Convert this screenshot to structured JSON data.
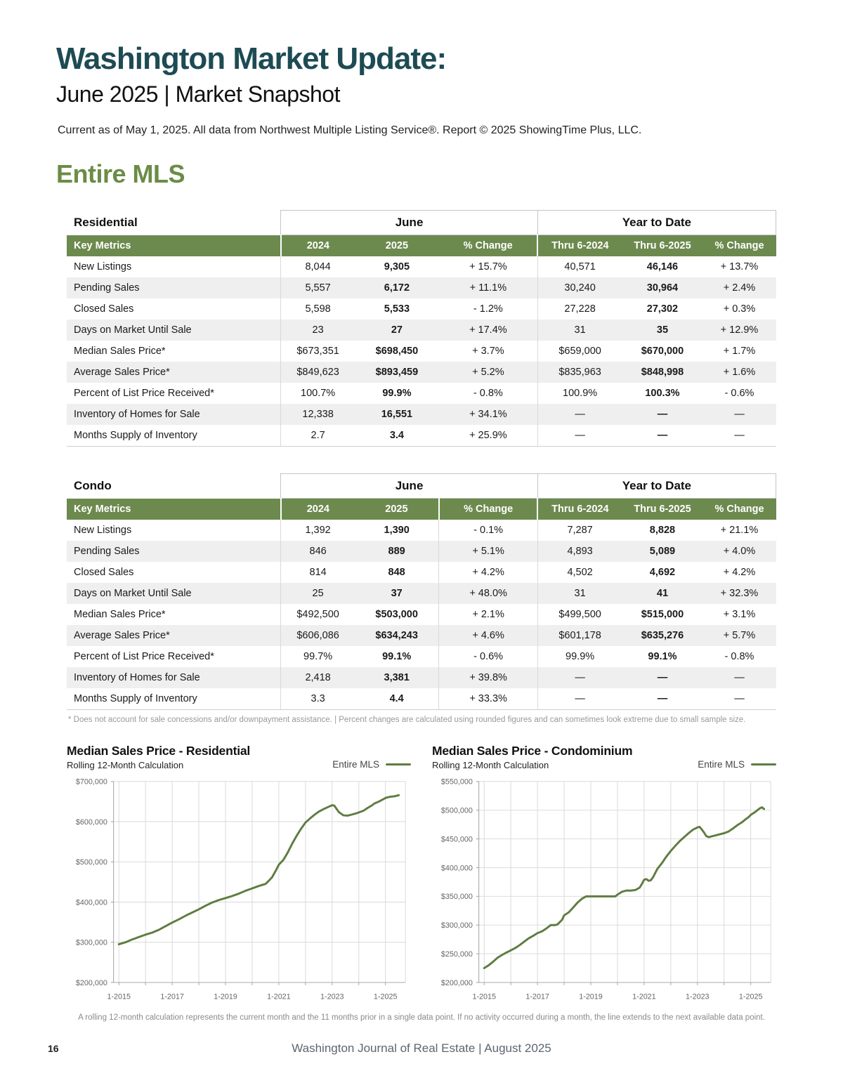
{
  "page": {
    "title": "Washington Market Update:",
    "subtitle": "June 2025 | Market Snapshot",
    "note": "Current as of May 1, 2025. All data from Northwest Multiple Listing Service®. Report © 2025 ShowingTime Plus, LLC.",
    "section_title": "Entire MLS",
    "footnote": "* Does not account for sale concessions and/or downpayment assistance. | Percent changes are calculated using rounded figures and can sometimes look extreme due to small sample size.",
    "chart_note": "A rolling 12-month calculation represents the current month and the 11 months prior in a single data point. If no activity occurred during a month, the line extends to the next available data point.",
    "page_number": "16",
    "footer": "Washington Journal of Real Estate | August 2025"
  },
  "colors": {
    "accent_teal": "#1d4b54",
    "accent_green": "#6b8c45",
    "table_header_green": "#6d8a4e",
    "chart_line": "#5f7c41",
    "row_alt": "#efefef"
  },
  "tables": [
    {
      "name": "Residential",
      "group_headers": [
        "June",
        "Year to Date"
      ],
      "columns": [
        "Key Metrics",
        "2024",
        "2025",
        "% Change",
        "Thru 6-2024",
        "Thru 6-2025",
        "% Change"
      ],
      "rows": [
        [
          "New Listings",
          "8,044",
          "9,305",
          "+ 15.7%",
          "40,571",
          "46,146",
          "+ 13.7%"
        ],
        [
          "Pending Sales",
          "5,557",
          "6,172",
          "+ 11.1%",
          "30,240",
          "30,964",
          "+ 2.4%"
        ],
        [
          "Closed Sales",
          "5,598",
          "5,533",
          "- 1.2%",
          "27,228",
          "27,302",
          "+ 0.3%"
        ],
        [
          "Days on Market Until Sale",
          "23",
          "27",
          "+ 17.4%",
          "31",
          "35",
          "+ 12.9%"
        ],
        [
          "Median Sales Price*",
          "$673,351",
          "$698,450",
          "+ 3.7%",
          "$659,000",
          "$670,000",
          "+ 1.7%"
        ],
        [
          "Average Sales Price*",
          "$849,623",
          "$893,459",
          "+ 5.2%",
          "$835,963",
          "$848,998",
          "+ 1.6%"
        ],
        [
          "Percent of List Price Received*",
          "100.7%",
          "99.9%",
          "- 0.8%",
          "100.9%",
          "100.3%",
          "- 0.6%"
        ],
        [
          "Inventory of Homes for Sale",
          "12,338",
          "16,551",
          "+ 34.1%",
          "—",
          "—",
          "—"
        ],
        [
          "Months Supply of Inventory",
          "2.7",
          "3.4",
          "+ 25.9%",
          "—",
          "—",
          "—"
        ]
      ]
    },
    {
      "name": "Condo",
      "group_headers": [
        "June",
        "Year to Date"
      ],
      "columns": [
        "Key Metrics",
        "2024",
        "2025",
        "% Change",
        "Thru 6-2024",
        "Thru 6-2025",
        "% Change"
      ],
      "rows": [
        [
          "New Listings",
          "1,392",
          "1,390",
          "- 0.1%",
          "7,287",
          "8,828",
          "+ 21.1%"
        ],
        [
          "Pending Sales",
          "846",
          "889",
          "+ 5.1%",
          "4,893",
          "5,089",
          "+ 4.0%"
        ],
        [
          "Closed Sales",
          "814",
          "848",
          "+ 4.2%",
          "4,502",
          "4,692",
          "+ 4.2%"
        ],
        [
          "Days on Market Until Sale",
          "25",
          "37",
          "+ 48.0%",
          "31",
          "41",
          "+ 32.3%"
        ],
        [
          "Median Sales Price*",
          "$492,500",
          "$503,000",
          "+ 2.1%",
          "$499,500",
          "$515,000",
          "+ 3.1%"
        ],
        [
          "Average Sales Price*",
          "$606,086",
          "$634,243",
          "+ 4.6%",
          "$601,178",
          "$635,276",
          "+ 5.7%"
        ],
        [
          "Percent of List Price Received*",
          "99.7%",
          "99.1%",
          "- 0.6%",
          "99.9%",
          "99.1%",
          "- 0.8%"
        ],
        [
          "Inventory of Homes for Sale",
          "2,418",
          "3,381",
          "+ 39.8%",
          "—",
          "—",
          "—"
        ],
        [
          "Months Supply of Inventory",
          "3.3",
          "4.4",
          "+ 33.3%",
          "—",
          "—",
          "—"
        ]
      ]
    }
  ],
  "chart_data": [
    {
      "type": "line",
      "title": "Median Sales Price - Residential",
      "subtitle": "Rolling 12-Month Calculation",
      "legend": [
        "Entire MLS"
      ],
      "legend_position": "top-right",
      "grid": true,
      "xlabel": "",
      "ylabel": "",
      "xlim": [
        2014.8,
        2025.75
      ],
      "ylim": [
        200000,
        700000
      ],
      "y_tick_step": 100000,
      "y_ticks": [
        "$700,000",
        "$600,000",
        "$500,000",
        "$400,000",
        "$300,000",
        "$200,000"
      ],
      "x_ticks": [
        "1-2015",
        "1-2017",
        "1-2019",
        "1-2021",
        "1-2023",
        "1-2025"
      ],
      "x_tick_years": [
        2015,
        2017,
        2019,
        2021,
        2023,
        2025
      ],
      "series": [
        {
          "name": "Entire MLS",
          "x": [
            2015.0,
            2015.25,
            2015.5,
            2015.75,
            2016.0,
            2016.25,
            2016.5,
            2016.75,
            2017.0,
            2017.25,
            2017.5,
            2017.75,
            2018.0,
            2018.25,
            2018.5,
            2018.75,
            2019.0,
            2019.25,
            2019.5,
            2019.75,
            2020.0,
            2020.25,
            2020.5,
            2020.58,
            2020.75,
            2020.9,
            2021.0,
            2021.17,
            2021.33,
            2021.5,
            2021.67,
            2021.83,
            2022.0,
            2022.17,
            2022.33,
            2022.5,
            2022.67,
            2022.83,
            2023.0,
            2023.08,
            2023.25,
            2023.42,
            2023.58,
            2023.75,
            2023.92,
            2024.0,
            2024.17,
            2024.33,
            2024.5,
            2024.58,
            2024.75,
            2024.92,
            2025.0,
            2025.17,
            2025.33,
            2025.5
          ],
          "y": [
            295000,
            300000,
            307000,
            313000,
            319000,
            324000,
            331000,
            340000,
            349000,
            357000,
            366000,
            374000,
            382000,
            391000,
            399000,
            405000,
            410000,
            415000,
            421000,
            428000,
            434000,
            440000,
            445000,
            450000,
            462000,
            480000,
            493000,
            505000,
            523000,
            545000,
            565000,
            582000,
            598000,
            608000,
            617000,
            625000,
            631000,
            636000,
            641000,
            640000,
            624000,
            616000,
            615000,
            618000,
            621000,
            623000,
            627000,
            634000,
            641000,
            645000,
            650000,
            656000,
            659000,
            662000,
            663000,
            666000
          ]
        }
      ]
    },
    {
      "type": "line",
      "title": "Median Sales Price - Condominium",
      "subtitle": "Rolling 12-Month Calculation",
      "legend": [
        "Entire MLS"
      ],
      "legend_position": "top-right",
      "grid": true,
      "xlabel": "",
      "ylabel": "",
      "xlim": [
        2014.8,
        2025.75
      ],
      "ylim": [
        200000,
        550000
      ],
      "y_tick_step": 50000,
      "y_ticks": [
        "$550,000",
        "$500,000",
        "$450,000",
        "$400,000",
        "$350,000",
        "$300,000",
        "$250,000",
        "$200,000"
      ],
      "x_ticks": [
        "1-2015",
        "1-2017",
        "1-2019",
        "1-2021",
        "1-2023",
        "1-2025"
      ],
      "x_tick_years": [
        2015,
        2017,
        2019,
        2021,
        2023,
        2025
      ],
      "series": [
        {
          "name": "Entire MLS",
          "x": [
            2015.0,
            2015.17,
            2015.33,
            2015.5,
            2015.67,
            2015.83,
            2016.0,
            2016.17,
            2016.33,
            2016.5,
            2016.67,
            2016.83,
            2017.0,
            2017.17,
            2017.33,
            2017.5,
            2017.67,
            2017.75,
            2017.92,
            2018.0,
            2018.17,
            2018.33,
            2018.5,
            2018.67,
            2018.83,
            2019.0,
            2019.25,
            2019.5,
            2019.75,
            2019.92,
            2020.0,
            2020.17,
            2020.33,
            2020.5,
            2020.67,
            2020.83,
            2020.92,
            2021.0,
            2021.08,
            2021.17,
            2021.25,
            2021.33,
            2021.5,
            2021.67,
            2021.83,
            2022.0,
            2022.17,
            2022.33,
            2022.5,
            2022.67,
            2022.83,
            2023.0,
            2023.08,
            2023.17,
            2023.25,
            2023.33,
            2023.42,
            2023.58,
            2023.75,
            2023.92,
            2024.0,
            2024.17,
            2024.33,
            2024.5,
            2024.67,
            2024.83,
            2024.92,
            2025.0,
            2025.17,
            2025.33,
            2025.42,
            2025.5
          ],
          "y": [
            225000,
            230000,
            236000,
            243000,
            248000,
            252000,
            256000,
            260000,
            265000,
            271000,
            277000,
            281000,
            286000,
            289000,
            294000,
            300000,
            300000,
            301000,
            309000,
            317000,
            322000,
            330000,
            339000,
            346000,
            350000,
            350000,
            350000,
            350000,
            350000,
            350000,
            353000,
            358000,
            360000,
            360000,
            361000,
            365000,
            372000,
            379000,
            380000,
            377000,
            378000,
            383000,
            398000,
            408000,
            419000,
            429000,
            438000,
            446000,
            453000,
            460000,
            466000,
            470000,
            471000,
            466000,
            461000,
            455000,
            453000,
            455000,
            457000,
            459000,
            460000,
            463000,
            468000,
            474000,
            479000,
            485000,
            488000,
            492000,
            497000,
            503000,
            505000,
            502000
          ]
        }
      ]
    }
  ]
}
